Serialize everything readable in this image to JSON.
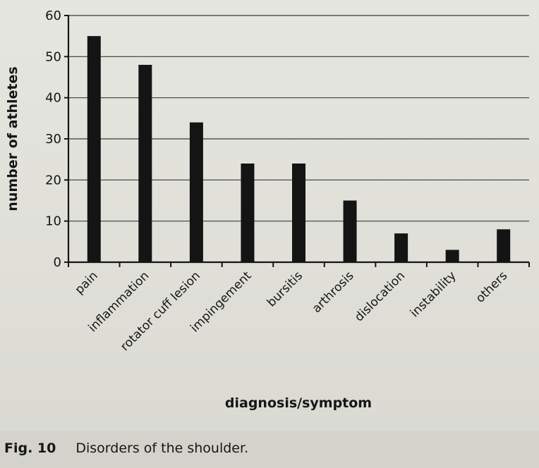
{
  "chart_data": {
    "type": "bar",
    "categories": [
      "pain",
      "inflammation",
      "rotator cuff lesion",
      "impingement",
      "bursitis",
      "arthrosis",
      "dislocation",
      "instability",
      "others"
    ],
    "values": [
      55,
      48,
      34,
      24,
      24,
      15,
      7,
      3,
      8
    ],
    "title": "",
    "xlabel": "diagnosis/symptom",
    "ylabel": "number of athletes",
    "ylim": [
      0,
      60
    ],
    "yticks": [
      0,
      10,
      20,
      30,
      40,
      50,
      60
    ],
    "grid": true,
    "legend": "none",
    "bar_color": "#141414"
  },
  "caption": {
    "figure": "Fig. 10",
    "text": "Disorders of the shoulder."
  }
}
